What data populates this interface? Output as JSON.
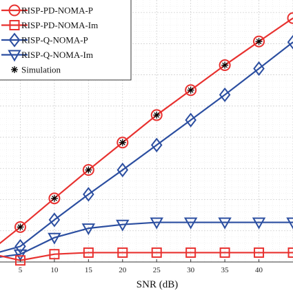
{
  "chart_data": {
    "type": "line",
    "title": "",
    "xlabel": "SNR (dB)",
    "ylabel": "",
    "xlim": [
      0,
      45
    ],
    "ylim": [
      0,
      8.4
    ],
    "xticks": [
      5,
      10,
      15,
      20,
      25,
      30,
      35,
      40
    ],
    "grid": true,
    "legend_position": "top-left",
    "series": [
      {
        "name": "RISP-PD-NOMA-P",
        "color": "#e8312f",
        "marker": "circle",
        "x": [
          0,
          5,
          10,
          15,
          20,
          25,
          30,
          35,
          40,
          45
        ],
        "y": [
          0.25,
          1.12,
          2.04,
          2.95,
          3.83,
          4.71,
          5.51,
          6.31,
          7.07,
          7.82
        ]
      },
      {
        "name": "RISP-PD-NOMA-Im",
        "color": "#e8312f",
        "marker": "square",
        "x": [
          0,
          5,
          10,
          15,
          20,
          25,
          30,
          35,
          40,
          45
        ],
        "y": [
          0.3,
          0.05,
          0.25,
          0.3,
          0.3,
          0.3,
          0.3,
          0.3,
          0.3,
          0.3
        ]
      },
      {
        "name": "RISP-Q-NOMA-P",
        "color": "#2b4ea0",
        "marker": "diamond",
        "x": [
          0,
          5,
          10,
          15,
          20,
          25,
          30,
          35,
          40,
          45
        ],
        "y": [
          0.2,
          0.5,
          1.35,
          2.17,
          2.95,
          3.75,
          4.55,
          5.36,
          6.2,
          7.05
        ]
      },
      {
        "name": "RISP-Q-NOMA-Im",
        "color": "#2b4ea0",
        "marker": "triangle-down",
        "x": [
          0,
          5,
          10,
          15,
          20,
          25,
          30,
          35,
          40,
          45
        ],
        "y": [
          0.1,
          0.25,
          0.78,
          1.08,
          1.2,
          1.27,
          1.27,
          1.27,
          1.27,
          1.27
        ]
      },
      {
        "name": "Simulation",
        "color": "#000000",
        "marker": "asterisk",
        "x": [
          0,
          5,
          10,
          15,
          20,
          25,
          30,
          35,
          40
        ],
        "y": [
          0.25,
          1.12,
          2.04,
          2.95,
          3.83,
          4.71,
          5.51,
          6.31,
          7.07
        ],
        "legend_only": false
      }
    ]
  }
}
